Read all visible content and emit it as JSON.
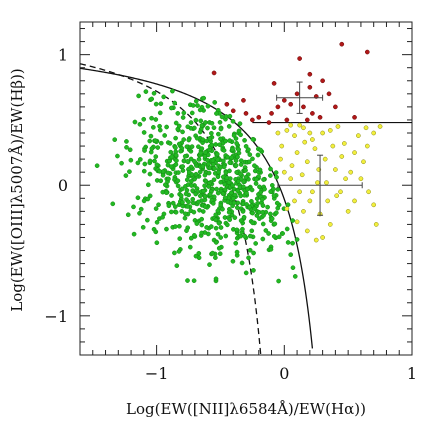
{
  "chart_data": {
    "type": "scatter",
    "title": "",
    "xlabel": "Log(EW([NII]λ6584Å)/EW(Hα))",
    "ylabel": "Log(EW([OIII]λ5007Å)/EW(Hβ))",
    "xlim": [
      -1.6,
      1.0
    ],
    "ylim": [
      -1.3,
      1.25
    ],
    "xticks": [
      -1,
      0,
      1
    ],
    "xtick_labels": [
      "−1",
      "0",
      "1"
    ],
    "yticks": [
      -1,
      0,
      1
    ],
    "ytick_labels": [
      "−1",
      "0",
      "1"
    ],
    "grid": false,
    "legend": "none",
    "series": [
      {
        "color": "#22b822",
        "edge": "#138a13",
        "cloud": {
          "count": 760,
          "center": [
            -0.52,
            0.03
          ],
          "spread": [
            0.33,
            0.29
          ],
          "tilt": -0.3,
          "seed": 7
        }
      },
      {
        "color": "#f2ef3c",
        "edge": "#8a8a16",
        "points": [
          [
            0.02,
            0.42
          ],
          [
            0.08,
            0.38
          ],
          [
            0.15,
            0.44
          ],
          [
            0.22,
            0.35
          ],
          [
            0.3,
            0.4
          ],
          [
            0.38,
            0.3
          ],
          [
            0.45,
            0.22
          ],
          [
            0.52,
            0.1
          ],
          [
            0.6,
            0.05
          ],
          [
            0.66,
            -0.05
          ],
          [
            0.1,
            0.25
          ],
          [
            0.18,
            0.18
          ],
          [
            0.27,
            0.12
          ],
          [
            0.33,
            0.02
          ],
          [
            0.41,
            -0.08
          ],
          [
            0.05,
            0.05
          ],
          [
            0.12,
            -0.05
          ],
          [
            0.2,
            -0.12
          ],
          [
            0.28,
            -0.22
          ],
          [
            0.36,
            -0.3
          ],
          [
            0.02,
            -0.18
          ],
          [
            0.1,
            -0.28
          ],
          [
            0.18,
            -0.35
          ],
          [
            0.25,
            -0.42
          ],
          [
            -0.02,
            0.3
          ],
          [
            0.06,
            0.15
          ],
          [
            0.14,
            0.08
          ],
          [
            0.24,
            0.28
          ],
          [
            0.32,
            0.2
          ],
          [
            0.4,
            0.12
          ],
          [
            0.47,
            0.32
          ],
          [
            0.55,
            0.25
          ],
          [
            0.62,
            0.18
          ],
          [
            0.7,
            -0.15
          ],
          [
            0.72,
            -0.3
          ],
          [
            0.5,
            -0.2
          ],
          [
            0.44,
            -0.05
          ],
          [
            0.16,
            0.33
          ],
          [
            0.08,
            -0.12
          ],
          [
            0.0,
            0.1
          ],
          [
            0.26,
            0.02
          ],
          [
            0.34,
            -0.12
          ],
          [
            0.2,
            0.4
          ],
          [
            0.12,
            0.46
          ],
          [
            0.58,
            0.38
          ],
          [
            0.64,
            0.44
          ],
          [
            0.7,
            0.4
          ],
          [
            0.05,
            0.46
          ],
          [
            -0.05,
            0.4
          ],
          [
            0.3,
            -0.4
          ],
          [
            0.48,
            0.05
          ],
          [
            0.36,
            0.42
          ],
          [
            0.42,
            0.45
          ],
          [
            0.75,
            0.45
          ],
          [
            -0.03,
            0.2
          ],
          [
            0.22,
            -0.05
          ],
          [
            0.55,
            -0.12
          ],
          [
            0.15,
            -0.2
          ],
          [
            0.65,
            0.3
          ]
        ]
      },
      {
        "color": "#b01818",
        "edge": "#6a0808",
        "points": [
          [
            -0.55,
            0.86
          ],
          [
            -0.45,
            0.62
          ],
          [
            -0.3,
            0.55
          ],
          [
            -0.2,
            0.52
          ],
          [
            -0.1,
            0.55
          ],
          [
            -0.05,
            0.6
          ],
          [
            0.0,
            0.65
          ],
          [
            0.05,
            0.62
          ],
          [
            0.1,
            0.7
          ],
          [
            0.15,
            0.6
          ],
          [
            0.2,
            0.75
          ],
          [
            0.25,
            0.68
          ],
          [
            0.3,
            0.8
          ],
          [
            0.35,
            0.7
          ],
          [
            0.45,
            1.08
          ],
          [
            0.65,
            1.02
          ],
          [
            0.12,
            0.97
          ],
          [
            0.2,
            0.85
          ],
          [
            -0.12,
            0.48
          ],
          [
            0.22,
            0.55
          ],
          [
            -0.25,
            0.5
          ],
          [
            -0.08,
            0.78
          ],
          [
            0.28,
            0.52
          ],
          [
            0.4,
            0.6
          ],
          [
            -0.4,
            0.57
          ],
          [
            0.02,
            0.5
          ],
          [
            0.55,
            0.52
          ],
          [
            0.18,
            0.5
          ],
          [
            -0.32,
            0.65
          ]
        ]
      }
    ],
    "boundary_curves": [
      {
        "style": "solid",
        "fn": "0.61/(x-0.47)+1.19",
        "x_range": [
          -1.6,
          0.22
        ]
      },
      {
        "style": "dashed",
        "fn": "0.61/(x-0.05)+1.30",
        "x_range": [
          -1.6,
          -0.18
        ]
      }
    ],
    "horizontal_line": {
      "y": 0.48,
      "x_range": [
        -0.25,
        1.0
      ]
    },
    "error_bars": [
      {
        "x": 0.12,
        "y": 0.67,
        "xerr": 0.18,
        "yerr": 0.12
      },
      {
        "x": 0.28,
        "y": 0.0,
        "xerr": 0.33,
        "yerr": 0.23
      }
    ]
  }
}
